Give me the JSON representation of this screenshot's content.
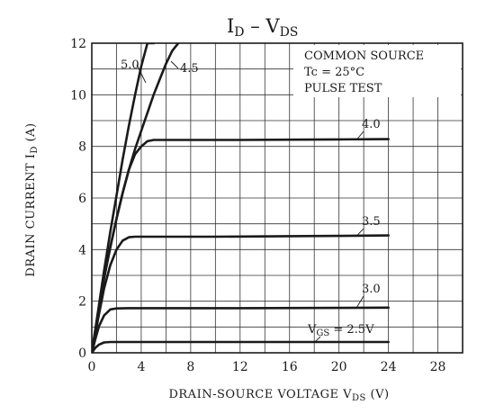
{
  "chart_data": {
    "type": "line",
    "title_main": "I",
    "title_main_sub": "D",
    "title_dash": " – V",
    "title_dash_sub": "DS",
    "xlabel_main": "DRAIN-SOURCE VOLTAGE  V",
    "xlabel_sub": "DS",
    "xlabel_unit": " (V)",
    "ylabel_main": "DRAIN CURRENT  I",
    "ylabel_sub": "D",
    "ylabel_unit": "  (A)",
    "xlim": [
      0,
      30
    ],
    "ylim": [
      0,
      12
    ],
    "xticks": [
      0,
      4,
      8,
      12,
      16,
      20,
      24,
      28
    ],
    "yticks": [
      0,
      2,
      4,
      6,
      8,
      10,
      12
    ],
    "grid_minor_x": 2,
    "grid_minor_y": 1,
    "grid": true,
    "annotations": [
      "COMMON SOURCE",
      "Tc = 25°C",
      "PULSE TEST"
    ],
    "series": [
      {
        "name": "5.0",
        "x": [
          0,
          0.5,
          1,
          1.5,
          2,
          2.5,
          3,
          3.5,
          4,
          4.5,
          5.0
        ],
        "y": [
          0,
          1.6,
          3.2,
          4.7,
          6.1,
          7.5,
          8.8,
          10.0,
          11.1,
          12.0,
          12.0
        ]
      },
      {
        "name": "4.5",
        "x": [
          0,
          0.5,
          1,
          1.5,
          2,
          2.5,
          3,
          3.5,
          4,
          4.5,
          5,
          5.5,
          6,
          6.5,
          7
        ],
        "y": [
          0,
          1.5,
          2.9,
          4.1,
          5.2,
          6.2,
          7.1,
          7.9,
          8.6,
          9.3,
          10.0,
          10.6,
          11.2,
          11.7,
          12.0
        ]
      },
      {
        "name": "4.0",
        "x": [
          0,
          0.5,
          1,
          1.5,
          2,
          2.5,
          3,
          3.5,
          4,
          4.5,
          5,
          6,
          8,
          12,
          16,
          20,
          24
        ],
        "y": [
          0,
          1.5,
          2.9,
          4.1,
          5.2,
          6.2,
          7.1,
          7.7,
          8.0,
          8.2,
          8.25,
          8.25,
          8.25,
          8.25,
          8.26,
          8.27,
          8.28
        ]
      },
      {
        "name": "3.5",
        "x": [
          0,
          0.5,
          1,
          1.5,
          2,
          2.5,
          3,
          3.5,
          4,
          6,
          10,
          16,
          20,
          24
        ],
        "y": [
          0,
          1.3,
          2.5,
          3.4,
          4.0,
          4.35,
          4.48,
          4.5,
          4.5,
          4.5,
          4.5,
          4.52,
          4.53,
          4.55
        ]
      },
      {
        "name": "3.0",
        "x": [
          0,
          0.3,
          0.6,
          1,
          1.5,
          2,
          3,
          6,
          12,
          20,
          24
        ],
        "y": [
          0,
          0.55,
          1.05,
          1.45,
          1.68,
          1.72,
          1.73,
          1.73,
          1.73,
          1.74,
          1.75
        ]
      },
      {
        "name": "VGS=2.5V",
        "x": [
          0,
          0.3,
          0.6,
          1,
          1.5,
          2,
          4,
          12,
          24
        ],
        "y": [
          0,
          0.2,
          0.32,
          0.4,
          0.42,
          0.42,
          0.42,
          0.42,
          0.42
        ]
      }
    ],
    "curve_labels": [
      "5.0",
      "4.5",
      "4.0",
      "3.5",
      "3.0"
    ],
    "vgs_label_prefix": "V",
    "vgs_label_sub": "GS",
    "vgs_label_suffix": " = 2.5V"
  }
}
